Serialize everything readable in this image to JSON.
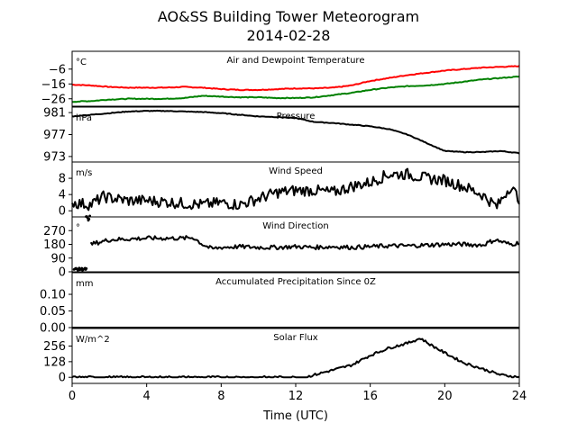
{
  "chart_data": {
    "type": "line",
    "title": "AO&SS Building Tower Meteorogram",
    "subtitle": "2014-02-28",
    "xlabel": "Time (UTC)",
    "xlim": [
      0,
      24
    ],
    "xticks": [
      0,
      4,
      8,
      12,
      16,
      20,
      24
    ],
    "panels": [
      {
        "title": "Air and Dewpoint Temperature",
        "unit": "°C",
        "ylim": [
          -31,
          6
        ],
        "yticks": [
          -26,
          -16,
          -6
        ],
        "ytick_labels": [
          "−26",
          "−16",
          "−6"
        ],
        "series": [
          {
            "color": "#ff0000",
            "x": [
              0,
              1,
              2,
              3,
              4,
              5,
              6,
              7,
              8,
              9,
              10,
              11,
              12,
              13,
              14,
              15,
              16,
              17,
              18,
              19,
              20,
              21,
              22,
              23,
              24
            ],
            "y": [
              -16.5,
              -17,
              -18,
              -18.5,
              -18.5,
              -18.5,
              -18,
              -18.5,
              -19.5,
              -20,
              -20,
              -19.5,
              -19,
              -19,
              -18.5,
              -17,
              -14,
              -12,
              -10,
              -8.5,
              -7,
              -6,
              -5,
              -4.5,
              -4
            ]
          },
          {
            "color": "#008000",
            "x": [
              0,
              1,
              2,
              3,
              4,
              5,
              6,
              7,
              8,
              9,
              10,
              11,
              12,
              13,
              14,
              15,
              16,
              17,
              18,
              19,
              20,
              21,
              22,
              23,
              24
            ],
            "y": [
              -28,
              -27.5,
              -26.5,
              -26,
              -26,
              -26,
              -25.5,
              -24,
              -24.5,
              -25,
              -25,
              -25.5,
              -25.5,
              -25,
              -23.5,
              -22,
              -20,
              -18.5,
              -17.5,
              -17,
              -16,
              -14.5,
              -13,
              -12,
              -11
            ]
          }
        ]
      },
      {
        "title": "Pressure",
        "unit": "hPa",
        "ylim": [
          972,
          982
        ],
        "yticks": [
          973,
          977,
          981
        ],
        "ytick_labels": [
          "973",
          "977",
          "981"
        ],
        "series": [
          {
            "color": "#000000",
            "x": [
              0,
              1,
              2,
              3,
              4,
              5,
              6,
              7,
              8,
              9,
              10,
              11,
              12,
              13,
              14,
              15,
              16,
              17,
              18,
              19,
              20,
              21,
              22,
              23,
              24
            ],
            "y": [
              980.3,
              980.6,
              980.9,
              981.2,
              981.3,
              981.3,
              981.2,
              981.1,
              980.9,
              980.6,
              980.3,
              980.2,
              980,
              979.3,
              979.1,
              978.8,
              978.5,
              978,
              977,
              975.5,
              974,
              973.8,
              973.8,
              974,
              973.6
            ]
          }
        ]
      },
      {
        "title": "Wind Speed",
        "unit": "m/s",
        "ylim": [
          -1.5,
          12
        ],
        "yticks": [
          0,
          4,
          8
        ],
        "ytick_labels": [
          "0",
          "4",
          "8"
        ],
        "series": [
          {
            "color": "#000000",
            "x": [
              0,
              1,
              1.7,
              2,
              3,
              4,
              5,
              6,
              7,
              8,
              9,
              10,
              11,
              12,
              13,
              14,
              15,
              16,
              17,
              18,
              19,
              20,
              21,
              22,
              22.8,
              23.5,
              24
            ],
            "y": [
              2,
              1.5,
              3.5,
              3.2,
              2.5,
              2.5,
              2.2,
              1.8,
              1.5,
              2,
              1.5,
              3,
              4.5,
              5,
              5,
              4.5,
              6,
              7,
              9,
              9,
              8,
              7.5,
              6,
              4,
              1,
              6,
              3
            ]
          }
        ]
      },
      {
        "title": "Wind Direction",
        "unit": "°",
        "ylim": [
          0,
          360
        ],
        "yticks": [
          0,
          90,
          180,
          270
        ],
        "ytick_labels": [
          "0",
          "90",
          "180",
          "270"
        ],
        "series": [
          {
            "color": "#000000",
            "x": [
              1,
              2,
              3,
              4,
              5,
              6,
              6.5,
              7,
              7.5,
              8,
              9,
              10,
              11,
              12,
              13,
              14,
              15,
              16,
              17,
              18,
              19,
              20,
              21,
              22,
              22.7,
              23.5,
              24
            ],
            "y": [
              180,
              210,
              215,
              220,
              220,
              220,
              225,
              180,
              150,
              160,
              165,
              160,
              160,
              165,
              160,
              165,
              160,
              165,
              170,
              170,
              175,
              180,
              180,
              175,
              210,
              180,
              190
            ]
          }
        ]
      },
      {
        "title": "Accumulated Precipitation Since 0Z",
        "unit": "mm",
        "ylim": [
          0,
          0.165
        ],
        "yticks": [
          0.0,
          0.05,
          0.1
        ],
        "ytick_labels": [
          "0.00",
          "0.05",
          "0.10"
        ],
        "series": [
          {
            "color": "#000000",
            "x": [
              0,
              24
            ],
            "y": [
              0,
              0
            ]
          }
        ]
      },
      {
        "title": "Solar Flux",
        "unit": "W/m^2",
        "ylim": [
          -50,
          400
        ],
        "yticks": [
          0,
          128,
          256
        ],
        "ytick_labels": [
          "0",
          "128",
          "256"
        ],
        "series": [
          {
            "color": "#000000",
            "x": [
              0,
              12.5,
              13,
              14,
              15,
              16,
              17,
              18,
              18.7,
              19.2,
              20,
              21,
              22,
              23,
              24
            ],
            "y": [
              0,
              0,
              20,
              60,
              100,
              180,
              240,
              280,
              320,
              270,
              200,
              120,
              70,
              20,
              0
            ]
          }
        ]
      }
    ]
  }
}
